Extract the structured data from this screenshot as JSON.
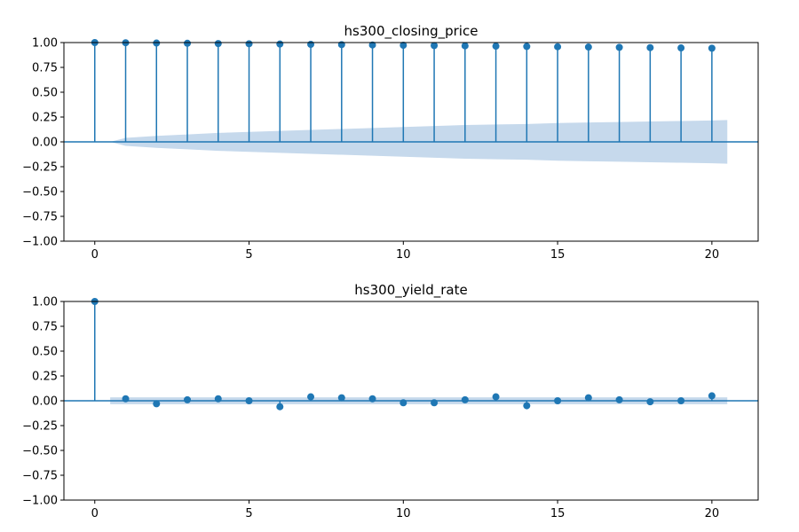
{
  "chart_data": [
    {
      "type": "stem",
      "title": "hs300_closing_price",
      "xlabel": "",
      "ylabel": "",
      "xlim": [
        -1,
        21.5
      ],
      "ylim": [
        -1.0,
        1.0
      ],
      "xticks": [
        0,
        5,
        10,
        15,
        20
      ],
      "yticks": [
        -1.0,
        -0.75,
        -0.5,
        -0.25,
        0.0,
        0.25,
        0.5,
        0.75,
        1.0
      ],
      "ytick_labels": [
        "−1.00",
        "−0.75",
        "−0.50",
        "−0.25",
        "0.00",
        "0.25",
        "0.50",
        "0.75",
        "1.00"
      ],
      "grid": false,
      "lags": [
        0,
        1,
        2,
        3,
        4,
        5,
        6,
        7,
        8,
        9,
        10,
        11,
        12,
        13,
        14,
        15,
        16,
        17,
        18,
        19,
        20
      ],
      "values": [
        1.0,
        0.998,
        0.995,
        0.993,
        0.99,
        0.988,
        0.985,
        0.982,
        0.979,
        0.976,
        0.973,
        0.97,
        0.967,
        0.964,
        0.961,
        0.958,
        0.955,
        0.952,
        0.949,
        0.946,
        0.943
      ],
      "confidence_band": {
        "lags": [
          0.5,
          1,
          2,
          3,
          4,
          5,
          6,
          7,
          8,
          9,
          10,
          11,
          12,
          13,
          14,
          15,
          16,
          17,
          18,
          19,
          20,
          20.5
        ],
        "upper": [
          0.0,
          0.04,
          0.06,
          0.075,
          0.09,
          0.1,
          0.11,
          0.12,
          0.13,
          0.14,
          0.15,
          0.16,
          0.17,
          0.175,
          0.18,
          0.19,
          0.195,
          0.2,
          0.205,
          0.21,
          0.215,
          0.22
        ]
      },
      "colors": {
        "stem": "#1f77b4",
        "band": "#c6d9ec",
        "zero_line": "#1f77b4"
      }
    },
    {
      "type": "stem",
      "title": "hs300_yield_rate",
      "xlabel": "",
      "ylabel": "",
      "xlim": [
        -1,
        21.5
      ],
      "ylim": [
        -1.0,
        1.0
      ],
      "xticks": [
        0,
        5,
        10,
        15,
        20
      ],
      "yticks": [
        -1.0,
        -0.75,
        -0.5,
        -0.25,
        0.0,
        0.25,
        0.5,
        0.75,
        1.0
      ],
      "ytick_labels": [
        "−1.00",
        "−0.75",
        "−0.50",
        "−0.25",
        "0.00",
        "0.25",
        "0.50",
        "0.75",
        "1.00"
      ],
      "grid": false,
      "lags": [
        0,
        1,
        2,
        3,
        4,
        5,
        6,
        7,
        8,
        9,
        10,
        11,
        12,
        13,
        14,
        15,
        16,
        17,
        18,
        19,
        20
      ],
      "values": [
        1.0,
        0.02,
        -0.03,
        0.01,
        0.02,
        0.0,
        -0.06,
        0.04,
        0.03,
        0.02,
        -0.02,
        -0.02,
        0.01,
        0.04,
        -0.05,
        0.0,
        0.03,
        0.01,
        -0.01,
        0.0,
        0.05
      ],
      "confidence_band": {
        "lags": [
          0.5,
          20.5
        ],
        "upper": [
          0.035,
          0.035
        ]
      },
      "colors": {
        "stem": "#1f77b4",
        "band": "#c6d9ec",
        "zero_line": "#1f77b4"
      }
    }
  ]
}
